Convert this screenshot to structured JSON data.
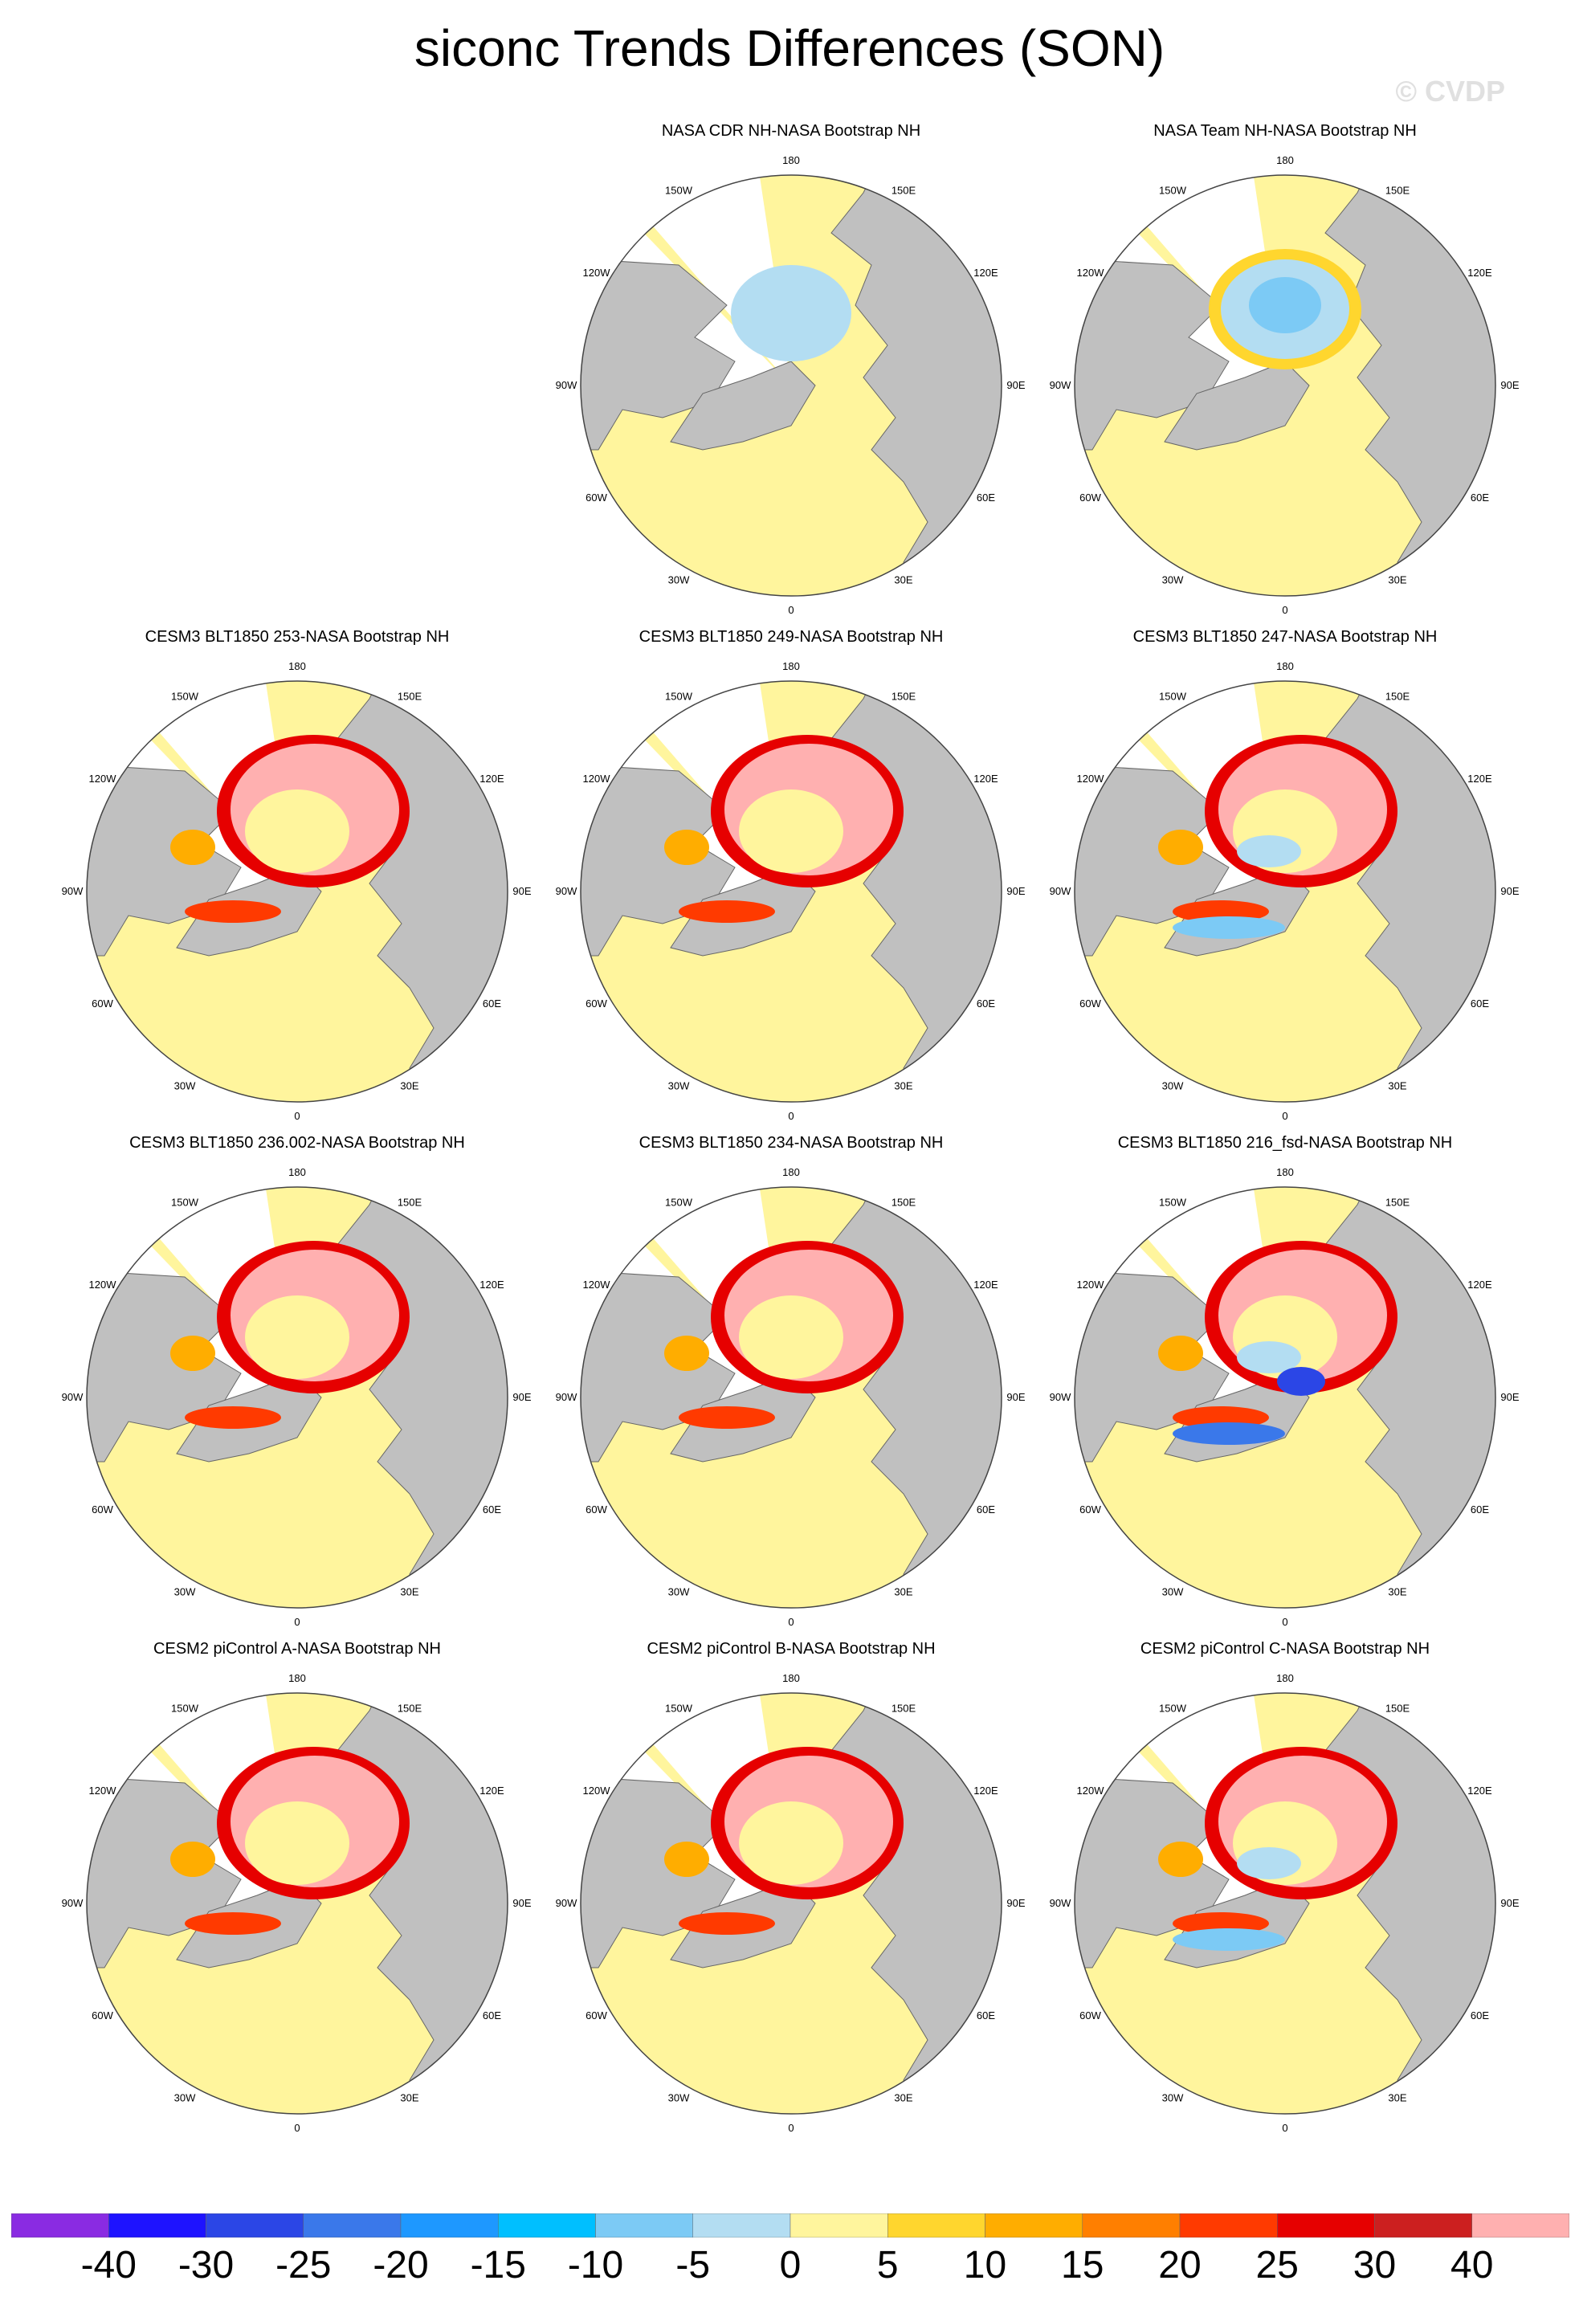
{
  "title": "siconc Trends Differences (SON)",
  "watermark": "© CVDP",
  "longitude_labels": [
    "180",
    "150E",
    "120E",
    "90E",
    "60E",
    "30E",
    "0",
    "30W",
    "60W",
    "90W",
    "120W",
    "150W"
  ],
  "panels": [
    {
      "title": "NASA CDR NH-NASA Bootstrap NH",
      "anomaly": "cdr"
    },
    {
      "title": "NASA Team NH-NASA Bootstrap NH",
      "anomaly": "team"
    },
    {
      "title": "CESM3 BLT1850 253-NASA Bootstrap NH",
      "anomaly": "model"
    },
    {
      "title": "CESM3 BLT1850 249-NASA Bootstrap NH",
      "anomaly": "model"
    },
    {
      "title": "CESM3 BLT1850 247-NASA Bootstrap NH",
      "anomaly": "model_blue"
    },
    {
      "title": "CESM3 BLT1850 236.002-NASA Bootstrap NH",
      "anomaly": "model"
    },
    {
      "title": "CESM3 BLT1850 234-NASA Bootstrap NH",
      "anomaly": "model"
    },
    {
      "title": "CESM3 BLT1850 216_fsd-NASA Bootstrap NH",
      "anomaly": "model_strong_blue"
    },
    {
      "title": "CESM2 piControl A-NASA Bootstrap NH",
      "anomaly": "model"
    },
    {
      "title": "CESM2 piControl B-NASA Bootstrap NH",
      "anomaly": "model"
    },
    {
      "title": "CESM2 piControl C-NASA Bootstrap NH",
      "anomaly": "model_blue"
    }
  ],
  "colorbar": {
    "colors": [
      "#8a2be2",
      "#1e13ff",
      "#2b46e6",
      "#3a78ea",
      "#1e98ff",
      "#00bfff",
      "#7ccaf5",
      "#b3ddf2",
      "#fff59d",
      "#ffd62e",
      "#ffad00",
      "#ff7f00",
      "#ff3a00",
      "#e60000",
      "#cc1f1f",
      "#ffb0b0"
    ],
    "labels": [
      "-40",
      "-30",
      "-25",
      "-20",
      "-15",
      "-10",
      "-5",
      "0",
      "5",
      "10",
      "15",
      "20",
      "25",
      "30",
      "40"
    ]
  },
  "colors": {
    "land": "#c0c0c0",
    "ocean_zero": "#fff59d",
    "no_data": "#ffffff"
  }
}
